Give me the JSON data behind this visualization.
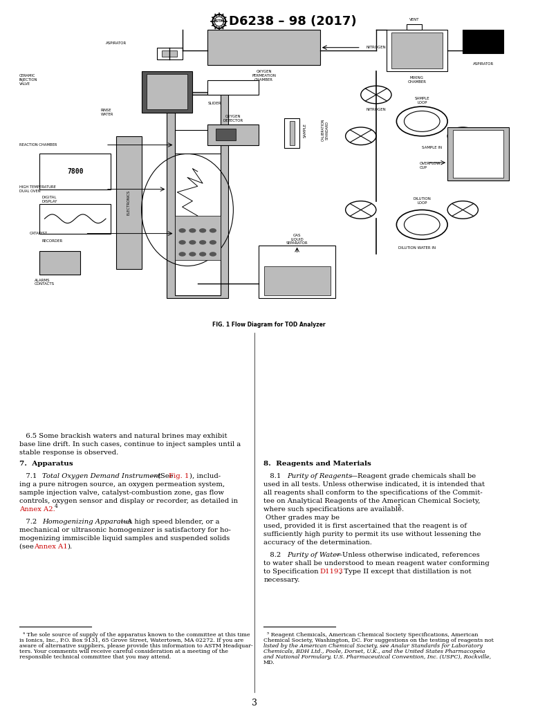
{
  "title": "D6238 – 98 (2017)",
  "fig_caption": "FIG. 1 Flow Diagram for TOD Analyzer",
  "page_number": "3",
  "bg_color": "#ffffff",
  "text_color": "#000000",
  "red_color": "#cc0000"
}
